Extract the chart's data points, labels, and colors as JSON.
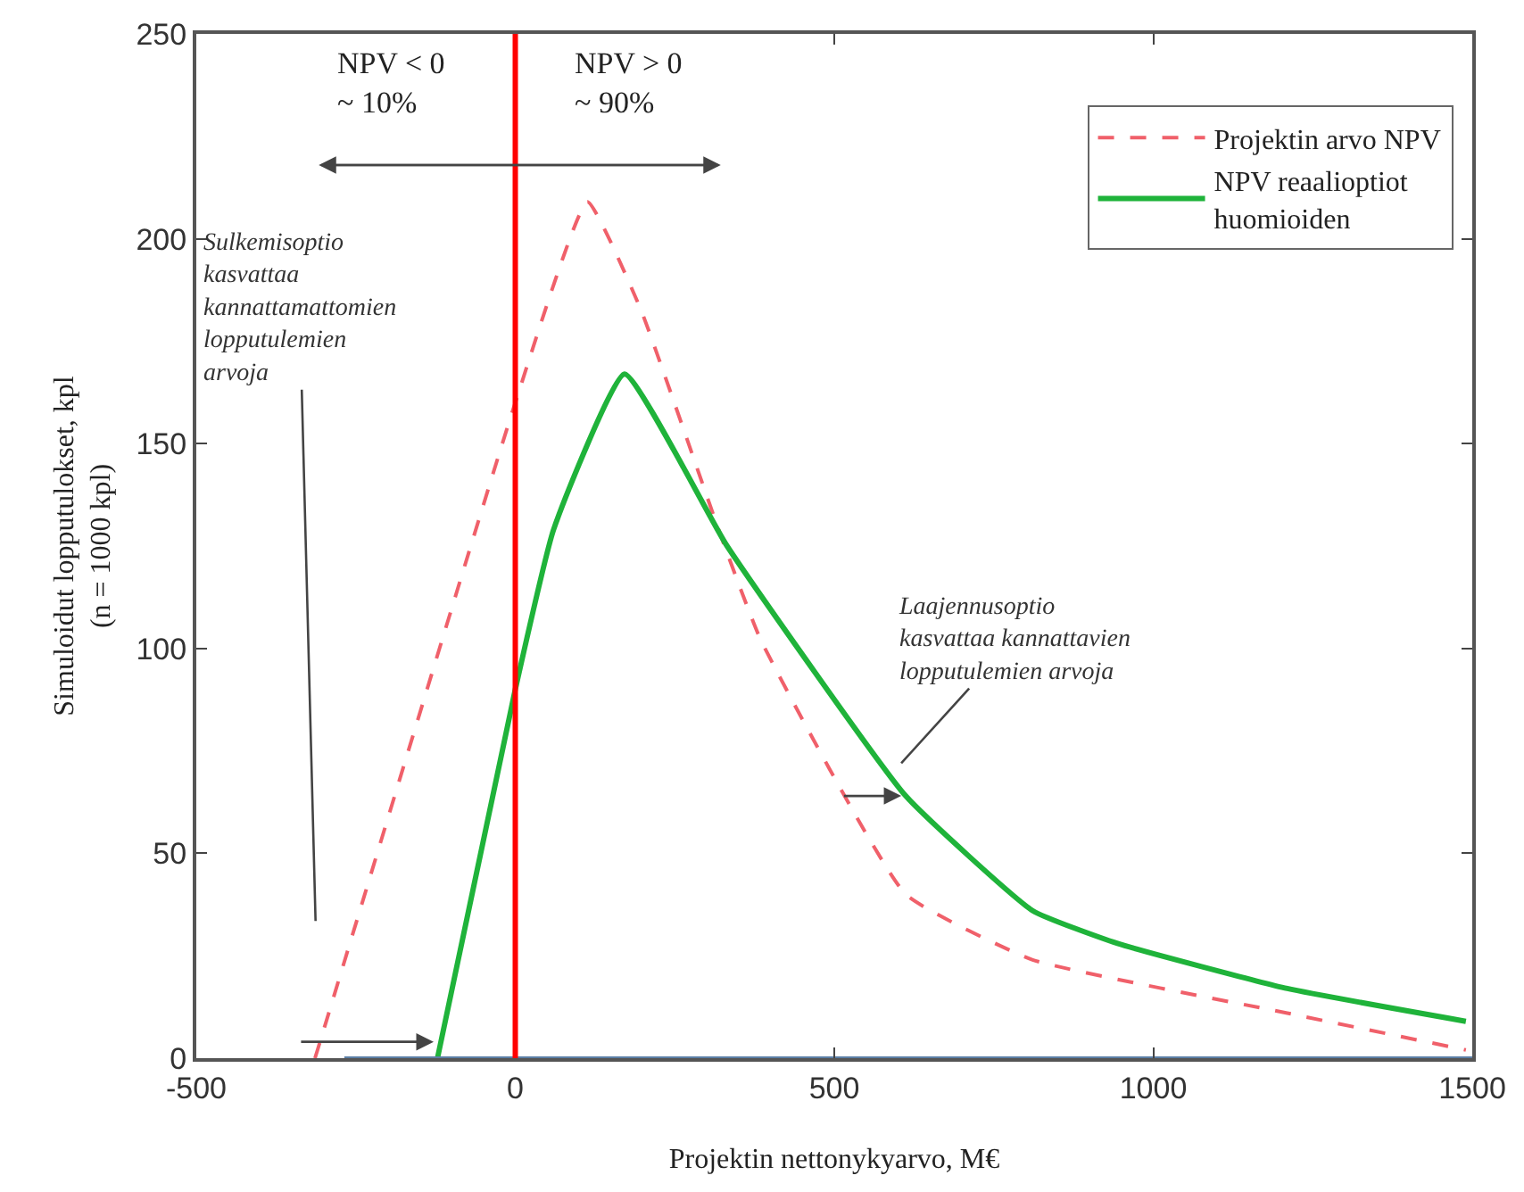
{
  "chart_data": {
    "type": "line",
    "xlabel": "Projektin nettonykyarvo, M€",
    "ylabel": "Simuloidut lopputulokset, kpl\n(n = 1000 kpl)",
    "series": [
      {
        "name": "Projektin arvo NPV",
        "color": "#f0606a",
        "line_style": "dashed",
        "x": [
          -314,
          -308,
          0,
          113,
          196,
          321,
          385,
          612,
          811,
          1210,
          1490
        ],
        "values": [
          0,
          3,
          160,
          209,
          183,
          128,
          102,
          40,
          24,
          11,
          2
        ]
      },
      {
        "name": "NPV reaalioptiot\nhuomioiden",
        "color": "#1fb33a",
        "line_style": "solid",
        "x": [
          -122,
          0,
          60,
          171,
          332,
          612,
          811,
          944,
          1210,
          1490
        ],
        "values": [
          0,
          90,
          129,
          167,
          125,
          64,
          36,
          28,
          17,
          9
        ]
      },
      {
        "color": "#5b7fa6",
        "line_style": "solid",
        "x": [
          -268,
          1500
        ],
        "values": [
          0,
          0
        ]
      }
    ],
    "ref_lines": [
      {
        "axis": "x",
        "value": 0,
        "color": "#ff0000"
      }
    ],
    "annotations": [
      "NPV < 0\n~ 10%",
      "NPV > 0\n~ 90%",
      {
        "text": "Sulkemisoptio\nkasvattaa\nkannattamattomien\nlopputulemien\narvoja",
        "x": -308,
        "y": 3
      },
      "Laajennusoptio\nkasvattaa kannattavien\nlopputulemien arvoja"
    ],
    "xlim": [
      -500,
      1500
    ],
    "xticks": [
      -500,
      0,
      500,
      1000,
      1500
    ],
    "ylim": [
      0,
      250
    ],
    "yticks": [
      0,
      50,
      100,
      150,
      200,
      250
    ],
    "legend": "top right",
    "marker": "none"
  }
}
